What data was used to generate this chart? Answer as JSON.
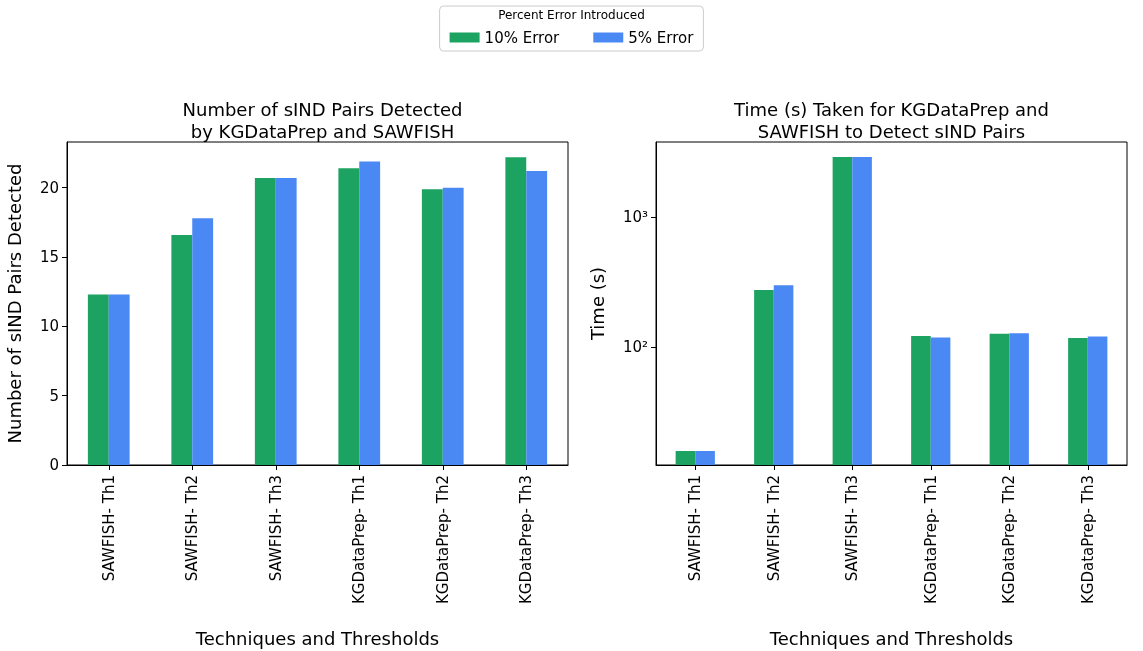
{
  "chart_data": [
    {
      "type": "bar",
      "title": "Number of sIND Pairs Detected\nby KGDataPrep and SAWFISH",
      "xlabel": "Techniques and Thresholds",
      "ylabel": "Number of sIND Pairs Detected",
      "legend_title": "Percent Error Introduced",
      "legend": "top",
      "categories": [
        "SAWFISH- Th1",
        "SAWFISH- Th2",
        "SAWFISH- Th3",
        "KGDataPrep- Th1",
        "KGDataPrep- Th2",
        "KGDataPrep- Th3"
      ],
      "series": [
        {
          "name": "10% Error",
          "color": "#1ca261",
          "values": [
            12.3,
            16.6,
            20.7,
            21.4,
            19.9,
            22.2
          ]
        },
        {
          "name": "5% Error",
          "color": "#4a89f3",
          "values": [
            12.3,
            17.8,
            20.7,
            21.9,
            20.0,
            21.2
          ]
        }
      ],
      "ylim": [
        0,
        23.3
      ],
      "yticks": [
        0,
        5,
        10,
        15,
        20
      ],
      "grid": false
    },
    {
      "type": "bar",
      "title": "Time (s) Taken for KGDataPrep and\nSAWFISH to Detect sIND Pairs",
      "xlabel": "Techniques and Thresholds",
      "ylabel": "Time (s)",
      "log": true,
      "categories": [
        "SAWFISH- Th1",
        "SAWFISH- Th2",
        "SAWFISH- Th3",
        "KGDataPrep- Th1",
        "KGDataPrep- Th2",
        "KGDataPrep- Th3"
      ],
      "series": [
        {
          "color": "#1ca261",
          "values": [
            16,
            275,
            2880,
            122,
            127,
            118
          ]
        },
        {
          "color": "#4a89f3",
          "values": [
            16,
            299,
            2880,
            119,
            128,
            121
          ]
        }
      ],
      "ylim": [
        12.5,
        3760
      ],
      "yticks": [
        {
          "value": 100,
          "label": "10²"
        },
        {
          "value": 1000,
          "label": "10³"
        }
      ],
      "grid": false
    }
  ]
}
